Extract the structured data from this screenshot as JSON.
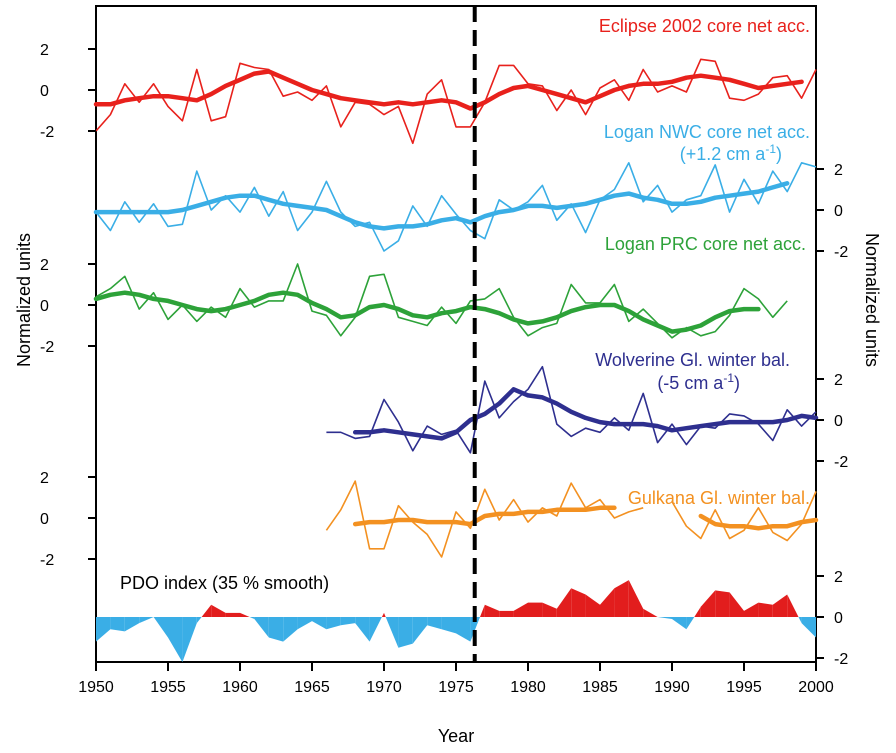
{
  "chart_data": {
    "type": "line",
    "xlabel": "Year",
    "ylabel_left": "Normalized units",
    "ylabel_right": "Normalized units",
    "xlim": [
      1950,
      2000
    ],
    "x_ticks": [
      1950,
      1955,
      1960,
      1965,
      1970,
      1975,
      1980,
      1985,
      1990,
      1995,
      2000
    ],
    "regime_shift_year": 1976.3,
    "series": [
      {
        "name": "Eclipse 2002 core net acc.",
        "subtitle": "",
        "color": "#e8211c",
        "axis": "left",
        "y_ticks": [
          2,
          0,
          -2
        ],
        "years": [
          1950,
          1951,
          1952,
          1953,
          1954,
          1955,
          1956,
          1957,
          1958,
          1959,
          1960,
          1961,
          1962,
          1963,
          1964,
          1965,
          1966,
          1967,
          1968,
          1969,
          1970,
          1971,
          1972,
          1973,
          1974,
          1975,
          1976,
          1977,
          1978,
          1979,
          1980,
          1981,
          1982,
          1983,
          1984,
          1985,
          1986,
          1987,
          1988,
          1989,
          1990,
          1991,
          1992,
          1993,
          1994,
          1995,
          1996,
          1997,
          1998,
          1999,
          2000
        ],
        "annual": [
          -2.0,
          -1.2,
          0.3,
          -0.6,
          0.3,
          -0.8,
          -1.5,
          1.0,
          -1.5,
          -1.3,
          1.3,
          1.1,
          1.0,
          -0.3,
          -0.1,
          -0.5,
          0.2,
          -1.8,
          -0.6,
          -0.7,
          -1.2,
          -0.8,
          -2.6,
          -0.2,
          0.5,
          -1.8,
          -1.8,
          -0.6,
          1.2,
          1.2,
          0.3,
          0.2,
          -1.0,
          0.0,
          -1.2,
          0.1,
          0.5,
          -0.5,
          1.0,
          -0.1,
          0.2,
          -0.1,
          1.5,
          1.4,
          -0.4,
          -0.5,
          -0.2,
          0.6,
          0.7,
          -0.4,
          1.0
        ],
        "smooth_years": [
          1950,
          1951,
          1952,
          1953,
          1954,
          1955,
          1956,
          1957,
          1958,
          1959,
          1960,
          1961,
          1962,
          1963,
          1964,
          1965,
          1966,
          1967,
          1968,
          1969,
          1970,
          1971,
          1972,
          1973,
          1974,
          1975,
          1976,
          1977,
          1978,
          1979,
          1980,
          1981,
          1982,
          1983,
          1984,
          1985,
          1986,
          1987,
          1988,
          1989,
          1990,
          1991,
          1992,
          1993,
          1994,
          1995,
          1996,
          1997,
          1998,
          1999
        ],
        "smooth": [
          -0.7,
          -0.7,
          -0.5,
          -0.4,
          -0.3,
          -0.3,
          -0.4,
          -0.5,
          -0.2,
          0.2,
          0.5,
          0.8,
          0.9,
          0.6,
          0.3,
          0.0,
          -0.2,
          -0.4,
          -0.5,
          -0.6,
          -0.7,
          -0.6,
          -0.7,
          -0.6,
          -0.5,
          -0.6,
          -0.9,
          -0.6,
          -0.2,
          0.1,
          0.2,
          0.0,
          -0.2,
          -0.4,
          -0.6,
          -0.3,
          0.0,
          0.2,
          0.3,
          0.3,
          0.4,
          0.6,
          0.7,
          0.6,
          0.5,
          0.3,
          0.1,
          0.2,
          0.3,
          0.4
        ]
      },
      {
        "name": "Logan NWC core net acc.",
        "subtitle": "(+1.2 cm a",
        "subtitle_sup": "-1",
        "subtitle_end": ")",
        "color": "#3aaee6",
        "axis": "right",
        "y_ticks": [
          2,
          0,
          -2
        ],
        "years": [
          1950,
          1951,
          1952,
          1953,
          1954,
          1955,
          1956,
          1957,
          1958,
          1959,
          1960,
          1961,
          1962,
          1963,
          1964,
          1965,
          1966,
          1967,
          1968,
          1969,
          1970,
          1971,
          1972,
          1973,
          1974,
          1975,
          1976,
          1977,
          1978,
          1979,
          1980,
          1981,
          1982,
          1983,
          1984,
          1985,
          1986,
          1987,
          1988,
          1989,
          1990,
          1991,
          1992,
          1993,
          1994,
          1995,
          1996,
          1997,
          1998,
          1999,
          2000
        ],
        "annual": [
          -0.1,
          -1.0,
          0.4,
          -0.6,
          0.3,
          -0.8,
          -0.7,
          1.9,
          0.0,
          0.7,
          -0.1,
          1.1,
          -0.3,
          0.9,
          -1.0,
          -0.1,
          1.4,
          -0.1,
          -0.8,
          -0.6,
          -2.0,
          -1.5,
          0.2,
          -0.8,
          0.7,
          -0.2,
          -1.0,
          -1.4,
          0.5,
          0.0,
          0.4,
          1.2,
          -0.5,
          0.3,
          -1.1,
          0.5,
          1.0,
          2.3,
          0.4,
          1.2,
          -0.1,
          0.5,
          0.7,
          2.2,
          -0.1,
          1.5,
          0.3,
          1.9,
          0.9,
          2.3,
          2.1
        ],
        "smooth_years": [
          1950,
          1951,
          1952,
          1953,
          1954,
          1955,
          1956,
          1957,
          1958,
          1959,
          1960,
          1961,
          1962,
          1963,
          1964,
          1965,
          1966,
          1967,
          1968,
          1969,
          1970,
          1971,
          1972,
          1973,
          1974,
          1975,
          1976,
          1977,
          1978,
          1979,
          1980,
          1981,
          1982,
          1983,
          1984,
          1985,
          1986,
          1987,
          1988,
          1989,
          1990,
          1991,
          1992,
          1993,
          1994,
          1995,
          1996,
          1997,
          1998
        ],
        "smooth": [
          -0.1,
          -0.1,
          -0.1,
          -0.1,
          -0.1,
          -0.1,
          0.0,
          0.2,
          0.4,
          0.6,
          0.7,
          0.7,
          0.5,
          0.3,
          0.2,
          0.1,
          0.0,
          -0.3,
          -0.6,
          -0.8,
          -0.9,
          -0.8,
          -0.8,
          -0.7,
          -0.5,
          -0.4,
          -0.6,
          -0.3,
          -0.1,
          0.0,
          0.2,
          0.2,
          0.1,
          0.2,
          0.3,
          0.5,
          0.7,
          0.8,
          0.6,
          0.5,
          0.3,
          0.3,
          0.4,
          0.6,
          0.7,
          0.8,
          0.9,
          1.1,
          1.3
        ]
      },
      {
        "name": "Logan PRC core net acc.",
        "subtitle": "",
        "color": "#2da239",
        "axis": "left",
        "y_ticks": [
          2,
          0,
          -2
        ],
        "years": [
          1950,
          1951,
          1952,
          1953,
          1954,
          1955,
          1956,
          1957,
          1958,
          1959,
          1960,
          1961,
          1962,
          1963,
          1964,
          1965,
          1966,
          1967,
          1968,
          1969,
          1970,
          1971,
          1972,
          1973,
          1974,
          1975,
          1976,
          1977,
          1978,
          1979,
          1980,
          1981,
          1982,
          1983,
          1984,
          1985,
          1986,
          1987,
          1988,
          1989,
          1990,
          1991,
          1992,
          1993,
          1994,
          1995,
          1996,
          1997,
          1998
        ],
        "annual": [
          0.4,
          0.8,
          1.4,
          -0.2,
          0.6,
          -0.7,
          0.0,
          -0.8,
          -0.1,
          -0.6,
          0.8,
          -0.1,
          0.2,
          0.2,
          2.0,
          -0.3,
          -0.5,
          -1.5,
          -0.6,
          1.4,
          1.5,
          -0.6,
          -0.8,
          -1.0,
          -0.1,
          -0.9,
          0.2,
          0.3,
          0.8,
          -0.6,
          -1.5,
          -1.1,
          -0.9,
          1.0,
          0.1,
          0.1,
          1.0,
          -0.8,
          -0.2,
          -0.9,
          -1.6,
          -1.1,
          -1.5,
          -1.3,
          -0.5,
          0.8,
          0.3,
          -0.6,
          0.2
        ],
        "smooth_years": [
          1950,
          1951,
          1952,
          1953,
          1954,
          1955,
          1956,
          1957,
          1958,
          1959,
          1960,
          1961,
          1962,
          1963,
          1964,
          1965,
          1966,
          1967,
          1968,
          1969,
          1970,
          1971,
          1972,
          1973,
          1974,
          1975,
          1976,
          1977,
          1978,
          1979,
          1980,
          1981,
          1982,
          1983,
          1984,
          1985,
          1986,
          1987,
          1988,
          1989,
          1990,
          1991,
          1992,
          1993,
          1994,
          1995,
          1996
        ],
        "smooth": [
          0.3,
          0.5,
          0.6,
          0.5,
          0.3,
          0.2,
          0.0,
          -0.2,
          -0.3,
          -0.2,
          0.0,
          0.2,
          0.5,
          0.6,
          0.5,
          0.1,
          -0.2,
          -0.6,
          -0.5,
          -0.1,
          0.0,
          -0.2,
          -0.5,
          -0.6,
          -0.4,
          -0.3,
          -0.1,
          -0.2,
          -0.4,
          -0.7,
          -0.9,
          -0.8,
          -0.6,
          -0.3,
          -0.1,
          0.0,
          0.0,
          -0.3,
          -0.7,
          -1.0,
          -1.3,
          -1.2,
          -1.0,
          -0.6,
          -0.3,
          -0.2,
          -0.2
        ]
      },
      {
        "name": "Wolverine Gl. winter bal.",
        "subtitle": "(-5 cm a",
        "subtitle_sup": "-1",
        "subtitle_end": ")",
        "color": "#2e2f8f",
        "axis": "right",
        "y_ticks": [
          2,
          0,
          -2
        ],
        "years": [
          1966,
          1967,
          1968,
          1969,
          1970,
          1971,
          1972,
          1973,
          1974,
          1975,
          1976,
          1977,
          1978,
          1979,
          1980,
          1981,
          1982,
          1983,
          1984,
          1985,
          1986,
          1987,
          1988,
          1989,
          1990,
          1991,
          1992,
          1993,
          1994,
          1995,
          1996,
          1997,
          1998,
          1999,
          2000
        ],
        "annual": [
          -0.6,
          -0.6,
          -0.9,
          -0.8,
          1.0,
          -0.1,
          -1.5,
          -0.3,
          -0.7,
          -0.5,
          -1.6,
          1.9,
          0.1,
          0.9,
          1.5,
          2.6,
          -0.2,
          -0.8,
          -0.4,
          -0.6,
          0.1,
          -0.5,
          1.3,
          -1.1,
          -0.2,
          -1.2,
          -0.3,
          -0.4,
          0.3,
          0.2,
          -0.2,
          -1.0,
          0.5,
          -0.3,
          0.4
        ],
        "smooth_years": [
          1968,
          1969,
          1970,
          1971,
          1972,
          1973,
          1974,
          1975,
          1976,
          1977,
          1978,
          1979,
          1980,
          1981,
          1982,
          1983,
          1984,
          1985,
          1986,
          1987,
          1988,
          1989,
          1990,
          1991,
          1992,
          1993,
          1994,
          1995,
          1996,
          1997,
          1998,
          1999,
          2000
        ],
        "smooth": [
          -0.6,
          -0.6,
          -0.5,
          -0.6,
          -0.7,
          -0.8,
          -0.9,
          -0.6,
          0.0,
          0.3,
          0.8,
          1.5,
          1.2,
          1.1,
          0.8,
          0.4,
          0.1,
          -0.1,
          -0.2,
          -0.2,
          -0.2,
          -0.3,
          -0.5,
          -0.4,
          -0.3,
          -0.2,
          -0.1,
          -0.1,
          -0.1,
          -0.1,
          0.0,
          0.2,
          0.1
        ]
      },
      {
        "name": "Gulkana Gl. winter bal.",
        "subtitle": "",
        "color": "#f39121",
        "axis": "left",
        "y_ticks": [
          2,
          0,
          -2
        ],
        "years": [
          1966,
          1967,
          1968,
          1969,
          1970,
          1971,
          1972,
          1973,
          1974,
          1975,
          1976,
          1977,
          1978,
          1979,
          1980,
          1981,
          1982,
          1983,
          1984,
          1985,
          1986,
          1987,
          1988,
          null,
          1990,
          1991,
          1992,
          1993,
          1994,
          1995,
          1996,
          1997,
          1998,
          1999,
          2000
        ],
        "annual": [
          -0.6,
          0.4,
          1.8,
          -1.5,
          -1.5,
          0.6,
          -0.2,
          -0.8,
          -1.9,
          0.3,
          -0.5,
          1.4,
          -0.1,
          0.9,
          -0.2,
          0.5,
          0.1,
          1.7,
          0.5,
          0.9,
          0.0,
          0.3,
          0.5,
          null,
          0.8,
          -0.4,
          -1.0,
          0.4,
          -1.0,
          -0.6,
          0.5,
          -0.7,
          -1.1,
          -0.3,
          1.3
        ],
        "smooth_years": [
          1968,
          1969,
          1970,
          1971,
          1972,
          1973,
          1974,
          1975,
          1976,
          1977,
          1978,
          1979,
          1980,
          1981,
          1982,
          1983,
          1984,
          1985,
          1986,
          null,
          1992,
          1993,
          1994,
          1995,
          1996,
          1997,
          1998,
          1999,
          2000
        ],
        "smooth": [
          -0.3,
          -0.2,
          -0.2,
          -0.1,
          -0.1,
          -0.2,
          -0.2,
          -0.2,
          -0.3,
          0.1,
          0.2,
          0.2,
          0.3,
          0.3,
          0.4,
          0.4,
          0.4,
          0.5,
          0.5,
          null,
          0.1,
          -0.3,
          -0.4,
          -0.4,
          -0.5,
          -0.4,
          -0.4,
          -0.2,
          -0.1
        ]
      },
      {
        "name": "PDO index (35 % smooth)",
        "subtitle": "",
        "type": "area",
        "positive_color": "#e21d1d",
        "negative_color": "#3aaee6",
        "axis": "right",
        "y_ticks": [
          2,
          0,
          -2
        ],
        "years": [
          1950,
          1951,
          1952,
          1953,
          1954,
          1955,
          1956,
          1957,
          1958,
          1959,
          1960,
          1961,
          1962,
          1963,
          1964,
          1965,
          1966,
          1967,
          1968,
          1969,
          1970,
          1971,
          1972,
          1973,
          1974,
          1975,
          1976,
          1977,
          1978,
          1979,
          1980,
          1981,
          1982,
          1983,
          1984,
          1985,
          1986,
          1987,
          1988,
          1989,
          1990,
          1991,
          1992,
          1993,
          1994,
          1995,
          1996,
          1997,
          1998,
          1999,
          2000
        ],
        "values": [
          -1.2,
          -0.6,
          -0.7,
          -0.3,
          0.0,
          -1.0,
          -2.2,
          -0.3,
          0.6,
          0.2,
          0.2,
          -0.1,
          -1.0,
          -1.2,
          -0.6,
          -0.2,
          -0.6,
          -0.4,
          -0.3,
          -1.2,
          0.2,
          -1.5,
          -1.3,
          -0.4,
          -0.6,
          -0.8,
          -1.2,
          0.6,
          0.3,
          0.3,
          0.7,
          0.7,
          0.4,
          1.4,
          1.1,
          0.6,
          1.4,
          1.8,
          0.4,
          0.0,
          -0.1,
          -0.6,
          0.5,
          1.3,
          1.2,
          0.3,
          0.7,
          0.6,
          1.1,
          -0.3,
          -1.0
        ]
      }
    ]
  }
}
